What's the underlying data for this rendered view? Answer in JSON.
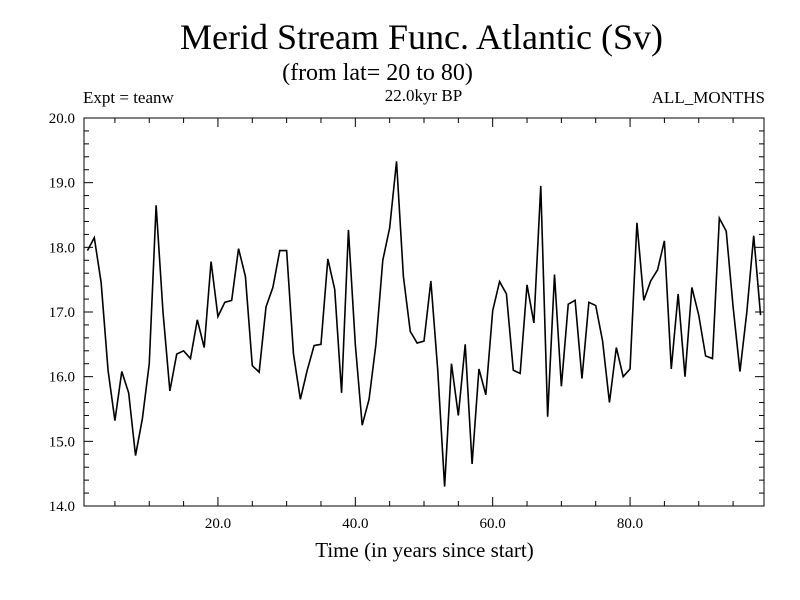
{
  "chart_data": {
    "type": "line",
    "title": "Merid Stream Func. Atlantic (Sv)",
    "subtitle": "(from lat= 20 to 80)",
    "annotations": {
      "left": "Expt = teanw",
      "center": "22.0kyr BP",
      "right": "ALL_MONTHS"
    },
    "xlabel": "Time (in years since start)",
    "ylabel": "",
    "xlim": [
      0.5,
      99.5
    ],
    "ylim": [
      14.0,
      20.0
    ],
    "xticks": [
      20,
      40,
      60,
      80
    ],
    "xtick_labels": [
      "20.0",
      "40.0",
      "60.0",
      "80.0"
    ],
    "yticks": [
      14,
      15,
      16,
      17,
      18,
      19,
      20
    ],
    "ytick_labels": [
      "14.0",
      "15.0",
      "16.0",
      "17.0",
      "18.0",
      "19.0",
      "20.0"
    ],
    "grid": false,
    "series": [
      {
        "name": "Merid Stream Func. Atlantic",
        "color": "#000000",
        "x": [
          1,
          2,
          3,
          4,
          5,
          6,
          7,
          8,
          9,
          10,
          11,
          12,
          13,
          14,
          15,
          16,
          17,
          18,
          19,
          20,
          21,
          22,
          23,
          24,
          25,
          26,
          27,
          28,
          29,
          30,
          31,
          32,
          33,
          34,
          35,
          36,
          37,
          38,
          39,
          40,
          41,
          42,
          43,
          44,
          45,
          46,
          47,
          48,
          49,
          50,
          51,
          52,
          53,
          54,
          55,
          56,
          57,
          58,
          59,
          60,
          61,
          62,
          63,
          64,
          65,
          66,
          67,
          68,
          69,
          70,
          71,
          72,
          73,
          74,
          75,
          76,
          77,
          78,
          79,
          80,
          81,
          82,
          83,
          84,
          85,
          86,
          87,
          88,
          89,
          90,
          91,
          92,
          93,
          94,
          95,
          96,
          97,
          98,
          99
        ],
        "values": [
          17.95,
          18.15,
          17.45,
          16.1,
          15.32,
          16.08,
          15.75,
          14.78,
          15.35,
          16.2,
          18.65,
          17.0,
          15.78,
          16.35,
          16.4,
          16.28,
          16.88,
          16.45,
          17.78,
          16.93,
          17.15,
          17.18,
          17.98,
          17.55,
          16.17,
          16.07,
          17.08,
          17.38,
          17.95,
          17.95,
          16.35,
          15.65,
          16.1,
          16.48,
          16.5,
          17.82,
          17.35,
          15.75,
          18.27,
          16.5,
          15.25,
          15.65,
          16.5,
          17.8,
          18.3,
          19.33,
          17.55,
          16.7,
          16.52,
          16.55,
          17.48,
          16.1,
          14.3,
          16.2,
          15.4,
          16.5,
          14.65,
          16.12,
          15.72,
          17.02,
          17.47,
          17.28,
          16.1,
          16.05,
          17.42,
          16.83,
          18.95,
          15.38,
          17.58,
          15.85,
          17.12,
          17.18,
          15.97,
          17.15,
          17.1,
          16.55,
          15.6,
          16.45,
          16.0,
          16.12,
          18.38,
          17.18,
          17.48,
          17.65,
          18.1,
          16.12,
          17.28,
          16.0,
          17.38,
          16.95,
          16.32,
          16.28,
          18.45,
          18.25,
          17.08,
          16.08,
          17.0,
          18.18,
          16.95
        ]
      }
    ]
  }
}
